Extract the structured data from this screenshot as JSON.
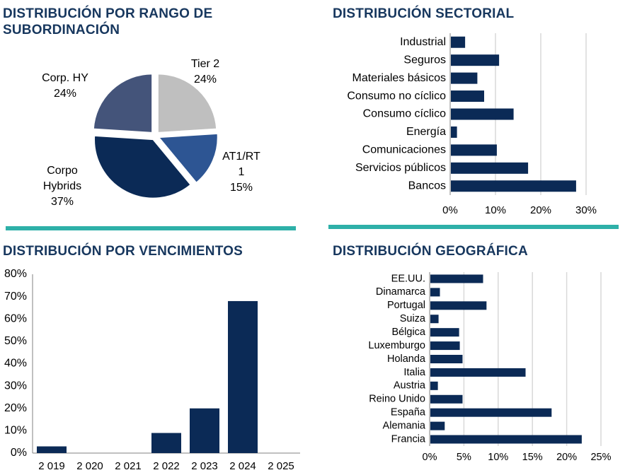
{
  "colors": {
    "navy": "#0b2a56",
    "title": "#17375e",
    "separator": "#2eb0a8",
    "grid": "#d9d9d9",
    "axis": "#808080"
  },
  "chart_data": [
    {
      "type": "pie",
      "title": "DISTRIBUCIÓN POR RANGO DE SUBORDINACIÓN",
      "title_lines": [
        "DISTRIBUCIÓN POR RANGO DE",
        "SUBORDINACIÓN"
      ],
      "slices": [
        {
          "name": "Tier 2",
          "label_lines": [
            "Tier 2",
            "24%"
          ],
          "value": 24,
          "color": "#bfbfbf"
        },
        {
          "name": "AT1/RT1",
          "label_lines": [
            "AT1/RT",
            "1",
            "15%"
          ],
          "value": 15,
          "color": "#2d5593"
        },
        {
          "name": "Corpo Hybrids",
          "label_lines": [
            "Corpo",
            "Hybrids",
            "37%"
          ],
          "value": 37,
          "color": "#0b2a56"
        },
        {
          "name": "Corp. HY",
          "label_lines": [
            "Corp. HY",
            "24%"
          ],
          "value": 24,
          "color": "#44547a"
        }
      ]
    },
    {
      "type": "bar",
      "orientation": "horizontal",
      "title": "DISTRIBUCIÓN SECTORIAL",
      "categories": [
        "Industrial",
        "Seguros",
        "Materiales básicos",
        "Consumo no cíclico",
        "Consumo cíclico",
        "Energía",
        "Comunicaciones",
        "Servicios públicos",
        "Bancos"
      ],
      "values": [
        3.3,
        10.8,
        6.0,
        7.5,
        14.0,
        1.5,
        10.3,
        17.2,
        27.8
      ],
      "xlim": [
        0,
        30
      ],
      "ticks": [
        0,
        10,
        20,
        30
      ],
      "tick_labels": [
        "0%",
        "10%",
        "20%",
        "30%"
      ]
    },
    {
      "type": "bar",
      "orientation": "vertical",
      "title": "DISTRIBUCIÓN POR VENCIMIENTOS",
      "categories": [
        "2 019",
        "2 020",
        "2 021",
        "2 022",
        "2 023",
        "2 024",
        "2 025"
      ],
      "values": [
        3,
        0,
        0,
        9,
        20,
        68,
        0
      ],
      "ylim": [
        0,
        80
      ],
      "ticks": [
        0,
        10,
        20,
        30,
        40,
        50,
        60,
        70,
        80
      ],
      "tick_labels": [
        "0%",
        "10%",
        "20%",
        "30%",
        "40%",
        "50%",
        "60%",
        "70%",
        "80%"
      ]
    },
    {
      "type": "bar",
      "orientation": "horizontal",
      "title": "DISTRIBUCIÓN GEOGRÁFICA",
      "categories": [
        "EE.UU.",
        "Dinamarca",
        "Portugal",
        "Suiza",
        "Bélgica",
        "Luxemburgo",
        "Holanda",
        "Italia",
        "Austria",
        "Reino Unido",
        "España",
        "Alemania",
        "Francia"
      ],
      "values": [
        7.8,
        1.5,
        8.3,
        1.3,
        4.3,
        4.4,
        4.8,
        14.0,
        1.2,
        4.8,
        17.8,
        2.2,
        22.2
      ],
      "xlim": [
        0,
        25
      ],
      "ticks": [
        0,
        5,
        10,
        15,
        20,
        25
      ],
      "tick_labels": [
        "0%",
        "5%",
        "10%",
        "15%",
        "20%",
        "25%"
      ]
    }
  ]
}
